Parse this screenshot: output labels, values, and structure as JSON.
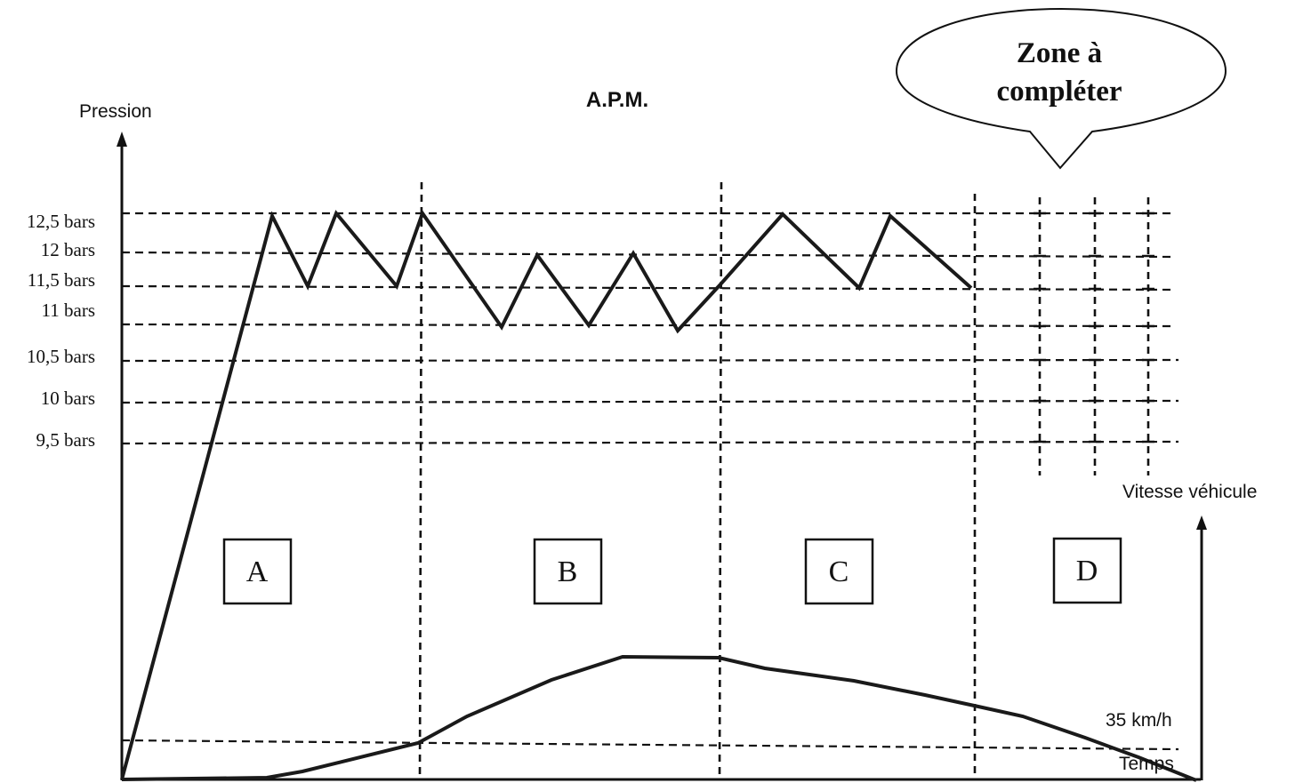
{
  "chart_data": {
    "type": "line",
    "title": "A.P.M.",
    "ylabel": "Pression",
    "xlabel": "Temps",
    "y2label": "Vitesse véhicule",
    "speed_marker": "35 km/h",
    "callout": [
      "Zone à",
      "compléter"
    ],
    "phases": [
      "A",
      "B",
      "C",
      "D"
    ],
    "y_ticks": [
      {
        "label": "12,5 bars",
        "value": 12.5
      },
      {
        "label": "12 bars",
        "value": 12
      },
      {
        "label": "11,5 bars",
        "value": 11.5
      },
      {
        "label": "11 bars",
        "value": 11
      },
      {
        "label": "10,5 bars",
        "value": 10.5
      },
      {
        "label": "10 bars",
        "value": 10
      },
      {
        "label": "9,5 bars",
        "value": 9.5
      }
    ],
    "grid": true
  }
}
